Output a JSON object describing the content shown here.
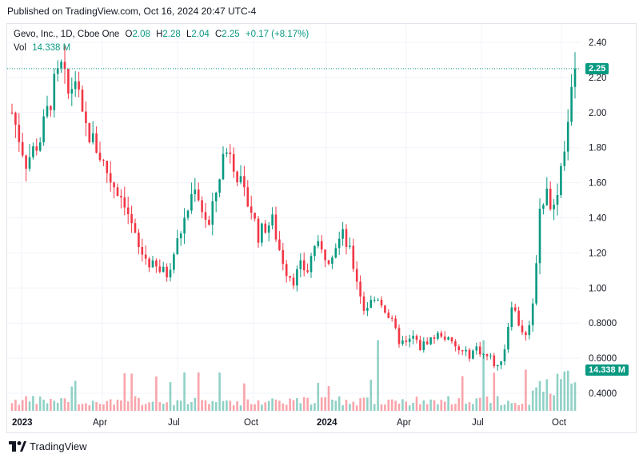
{
  "header": {
    "published": "Published on TradingView.com, Oct 16, 2024 20:47 UTC-4"
  },
  "legend": {
    "symbol": "Gevo, Inc., 1D, Cboe One",
    "open_label": "O",
    "open": "2.08",
    "high_label": "H",
    "high": "2.28",
    "low_label": "L",
    "low": "2.04",
    "close_label": "C",
    "close": "2.25",
    "change": "+0.17 (+8.17%)",
    "vol_label": "Vol",
    "vol": "14.338 M"
  },
  "badges": {
    "price": "2.25",
    "volume": "14.338 M"
  },
  "footer": {
    "brand": "TradingView"
  },
  "colors": {
    "up": "#089981",
    "down": "#f23645",
    "grid": "#f0f3fa",
    "accent": "#089981"
  },
  "chart_data": {
    "type": "candlestick",
    "title": "Gevo, Inc., 1D, Cboe One",
    "price_axis": {
      "ticks": [
        "2.40",
        "2.20",
        "2.00",
        "1.80",
        "1.60",
        "1.40",
        "1.20",
        "1.00",
        "0.8000",
        "0.6000",
        "0.4000"
      ],
      "range": [
        0.3,
        2.4
      ]
    },
    "time_axis": {
      "labels": [
        "2023",
        "Apr",
        "Jul",
        "Oct",
        "2024",
        "Apr",
        "Jul",
        "Oct"
      ],
      "bold": [
        "2023",
        "2024"
      ]
    },
    "last_price": 2.25,
    "last_volume_millions": 14.338,
    "price_path": [
      [
        0,
        2.0
      ],
      [
        4,
        1.72
      ],
      [
        8,
        1.85
      ],
      [
        12,
        2.15
      ],
      [
        14,
        2.25
      ],
      [
        16,
        2.1
      ],
      [
        18,
        2.2
      ],
      [
        20,
        1.95
      ],
      [
        24,
        1.8
      ],
      [
        28,
        1.62
      ],
      [
        32,
        1.5
      ],
      [
        34,
        1.35
      ],
      [
        36,
        1.22
      ],
      [
        40,
        1.12
      ],
      [
        44,
        1.08
      ],
      [
        46,
        1.2
      ],
      [
        50,
        1.45
      ],
      [
        52,
        1.6
      ],
      [
        54,
        1.45
      ],
      [
        56,
        1.35
      ],
      [
        58,
        1.55
      ],
      [
        60,
        1.75
      ],
      [
        62,
        1.8
      ],
      [
        64,
        1.65
      ],
      [
        66,
        1.52
      ],
      [
        68,
        1.45
      ],
      [
        70,
        1.3
      ],
      [
        72,
        1.35
      ],
      [
        74,
        1.38
      ],
      [
        76,
        1.22
      ],
      [
        78,
        1.1
      ],
      [
        80,
        1.05
      ],
      [
        82,
        1.12
      ],
      [
        84,
        1.1
      ],
      [
        86,
        1.25
      ],
      [
        88,
        1.2
      ],
      [
        90,
        1.18
      ],
      [
        92,
        1.25
      ],
      [
        94,
        1.3
      ],
      [
        96,
        1.2
      ],
      [
        98,
        1.05
      ],
      [
        100,
        0.88
      ],
      [
        102,
        0.92
      ],
      [
        104,
        0.95
      ],
      [
        106,
        0.88
      ],
      [
        108,
        0.8
      ],
      [
        110,
        0.7
      ],
      [
        112,
        0.68
      ],
      [
        114,
        0.72
      ],
      [
        116,
        0.66
      ],
      [
        118,
        0.7
      ],
      [
        120,
        0.72
      ],
      [
        122,
        0.74
      ],
      [
        124,
        0.7
      ],
      [
        126,
        0.66
      ],
      [
        128,
        0.63
      ],
      [
        130,
        0.62
      ],
      [
        132,
        0.66
      ],
      [
        134,
        0.62
      ],
      [
        136,
        0.6
      ],
      [
        138,
        0.54
      ],
      [
        140,
        0.66
      ],
      [
        142,
        0.92
      ],
      [
        144,
        0.8
      ],
      [
        146,
        0.72
      ],
      [
        148,
        0.9
      ],
      [
        150,
        1.45
      ],
      [
        152,
        1.55
      ],
      [
        154,
        1.45
      ],
      [
        156,
        1.7
      ],
      [
        158,
        1.95
      ],
      [
        160,
        2.25
      ]
    ]
  }
}
